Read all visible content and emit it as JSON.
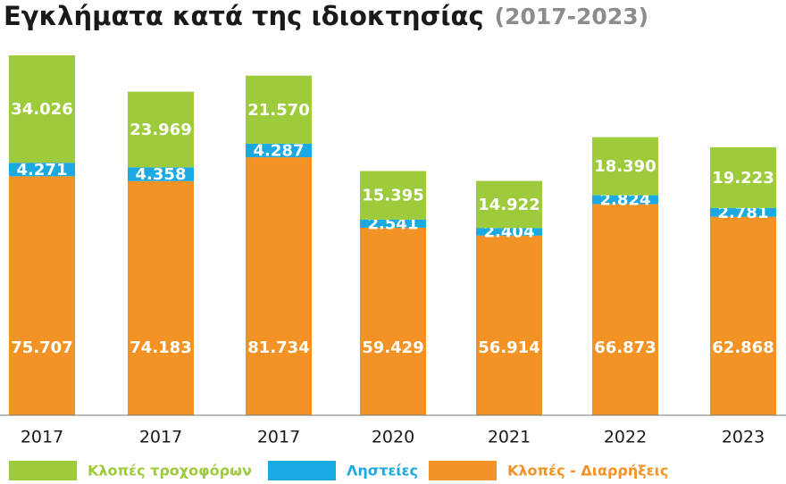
{
  "chart_data": {
    "type": "stacked-bar",
    "title": "Εγκλήματα κατά της ιδιοκτησίας",
    "subtitle": "(2017-2023)",
    "categories": [
      "2017",
      "2017",
      "2017",
      "2020",
      "2021",
      "2022",
      "2023"
    ],
    "legend": "bottom",
    "series": [
      {
        "name": "Κλοπές τροχοφόρων",
        "color": "#9dcb3b",
        "values": [
          34026,
          23969,
          21570,
          15395,
          14922,
          18390,
          19223
        ],
        "value_labels": [
          "34.026",
          "23.969",
          "21.570",
          "15.395",
          "14.922",
          "18.390",
          "19.223"
        ]
      },
      {
        "name": "Ληστείες",
        "color": "#1aa9e1",
        "values": [
          4271,
          4358,
          4287,
          2541,
          2404,
          2824,
          2781
        ],
        "value_labels": [
          "4.271",
          "4.358",
          "4.287",
          "2.541",
          "2.404",
          "2.824",
          "2.781"
        ]
      },
      {
        "name": "Κλοπές - Διαρρήξεις",
        "color": "#f39325",
        "values": [
          75707,
          74183,
          81734,
          59429,
          56914,
          66873,
          62868
        ],
        "value_labels": [
          "75.707",
          "74.183",
          "81.734",
          "59.429",
          "56.914",
          "66.873",
          "62.868"
        ]
      }
    ]
  }
}
